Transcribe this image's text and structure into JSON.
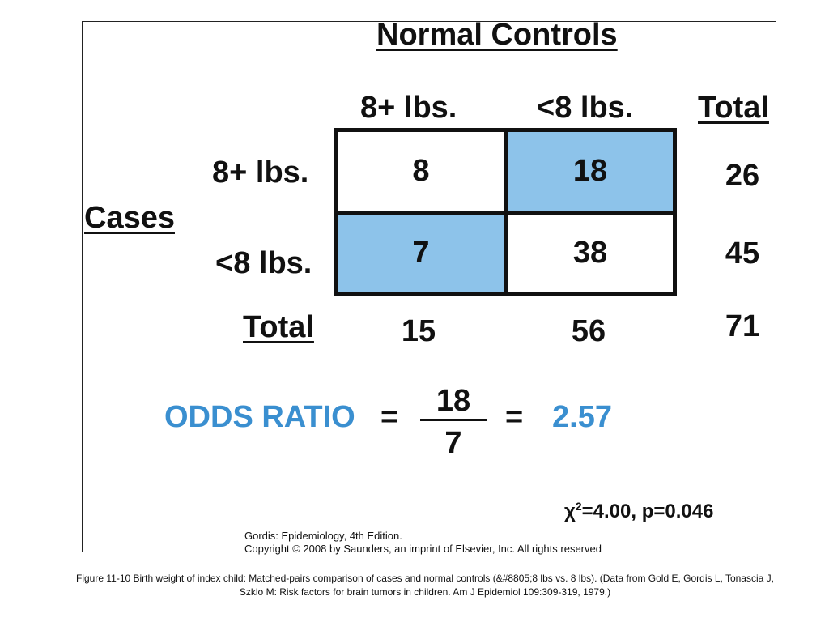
{
  "header": {
    "title": "Normal Controls"
  },
  "columns": [
    "8+ lbs.",
    "<8 lbs.",
    "Total"
  ],
  "row_group_label": "Cases",
  "rows": [
    {
      "label": "8+ lbs.",
      "cells": [
        "8",
        "18"
      ],
      "total": "26"
    },
    {
      "label": "<8 lbs.",
      "cells": [
        "7",
        "38"
      ],
      "total": "45"
    }
  ],
  "totals": {
    "label": "Total",
    "values": [
      "15",
      "56"
    ],
    "grand": "71"
  },
  "odds": {
    "label": "ODDS RATIO",
    "equals": "=",
    "numerator": "18",
    "denominator": "7",
    "result": "2.57",
    "accent_color": "#3a8fd0"
  },
  "highlight_color": "#8dc3ea",
  "stats": {
    "chi_symbol": "χ",
    "chi_exp": "2",
    "rest": "=4.00, p=0.046"
  },
  "source": {
    "line1": "Gordis: Epidemiology, 4th Edition.",
    "line2": "Copyright © 2008 by Saunders, an imprint of Elsevier, Inc. All rights reserved"
  },
  "caption": "Figure 11-10 Birth weight of index child: Matched-pairs comparison of cases and normal controls (&#8805;8 lbs vs. 8 lbs). (Data from Gold E, Gordis L, Tonascia J, Szklo M: Risk factors for brain tumors in children. Am J Epidemiol 109:309-319, 1979.)"
}
